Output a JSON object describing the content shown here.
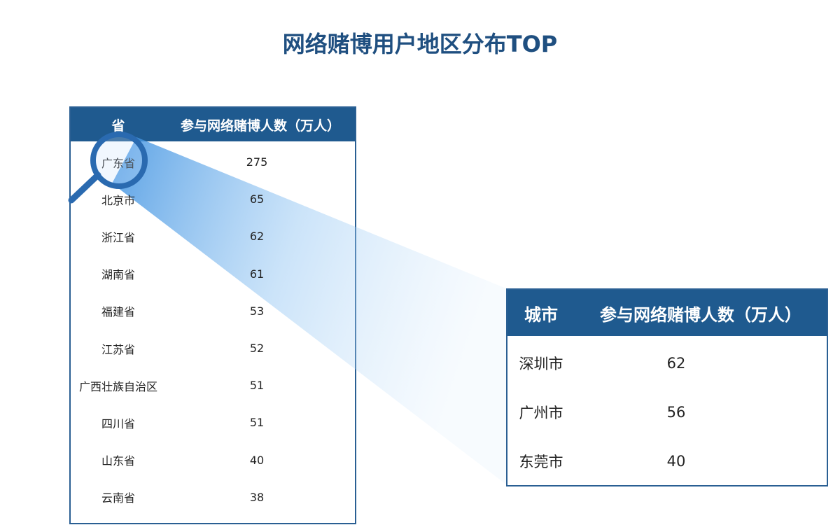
{
  "title": "网络赌博用户地区分布TOP",
  "colors": {
    "header": "#1f5a8f",
    "title": "#1f4f80",
    "beam": "#4a9be8"
  },
  "chart_data": [
    {
      "type": "table",
      "columns": [
        "省",
        "参与网络赌博人数（万人）"
      ],
      "rows": [
        [
          "广东省",
          "275"
        ],
        [
          "北京市",
          "65"
        ],
        [
          "浙江省",
          "62"
        ],
        [
          "湖南省",
          "61"
        ],
        [
          "福建省",
          "53"
        ],
        [
          "江苏省",
          "52"
        ],
        [
          "广西壮族自治区",
          "51"
        ],
        [
          "四川省",
          "51"
        ],
        [
          "山东省",
          "40"
        ],
        [
          "云南省",
          "38"
        ]
      ]
    },
    {
      "type": "table",
      "columns": [
        "城市",
        "参与网络赌博人数（万人）"
      ],
      "rows": [
        [
          "深圳市",
          "62"
        ],
        [
          "广州市",
          "56"
        ],
        [
          "东莞市",
          "40"
        ]
      ]
    }
  ],
  "icons": {
    "magnifier": "magnifier-icon"
  }
}
